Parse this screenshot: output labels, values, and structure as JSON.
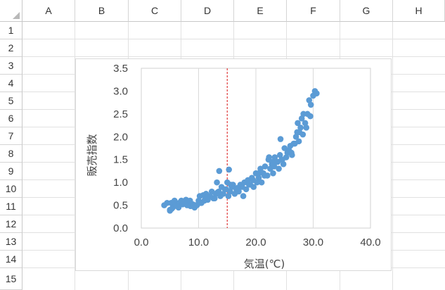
{
  "sheet": {
    "columns": [
      "A",
      "B",
      "C",
      "D",
      "E",
      "F",
      "G",
      "H"
    ],
    "rows": [
      "1",
      "2",
      "3",
      "4",
      "5",
      "6",
      "7",
      "8",
      "9",
      "10",
      "11",
      "12",
      "13",
      "14",
      "15"
    ]
  },
  "chart_data": {
    "type": "scatter",
    "title": "",
    "xlabel": "気温(℃)",
    "ylabel": "販売指数",
    "xlim": [
      0,
      40
    ],
    "ylim": [
      0,
      3.5
    ],
    "x_ticks": [
      "0.0",
      "10.0",
      "20.0",
      "30.0",
      "40.0"
    ],
    "y_ticks": [
      "0.0",
      "0.5",
      "1.0",
      "1.5",
      "2.0",
      "2.5",
      "3.0",
      "3.5"
    ],
    "grid": "vertical",
    "reference_line": {
      "x": 15,
      "style": "dashed",
      "color": "#e03c3c"
    },
    "marker_color": "#5b9bd5",
    "series": [
      {
        "x": [
          4,
          4.5,
          5,
          5.2,
          5.5,
          5.8,
          6,
          6.3,
          6.6,
          7,
          7.2,
          7.5,
          7.8,
          8,
          8.3,
          8.6,
          9,
          9.3,
          9.7,
          10,
          10.2,
          10.5,
          10.8,
          11,
          11.3,
          11.6,
          12,
          12.3,
          12.6,
          13,
          13.2,
          13.5,
          13.8,
          14,
          14.3,
          14.6,
          15,
          15.2,
          15.5,
          15.8,
          16,
          16.3,
          16.6,
          17,
          17.3,
          17.6,
          18,
          18.3,
          18.6,
          19,
          19.3,
          19.6,
          20,
          20.2,
          20.5,
          20.8,
          21,
          21.3,
          21.6,
          22,
          22.2,
          22.5,
          22.8,
          23,
          23.3,
          23.6,
          24,
          24.2,
          24.5,
          24.8,
          25,
          25.3,
          25.6,
          26,
          26.3,
          26.6,
          27,
          27.2,
          27.5,
          27.8,
          28,
          28.3,
          28.6,
          29,
          29.3,
          29.6,
          30,
          30.3,
          30.6,
          5,
          6.5,
          8.5,
          11.5,
          12.8,
          14.8,
          17.8,
          19.5,
          21.5,
          23.8,
          25.5,
          27.3,
          28.8,
          5.3,
          7.3,
          10.3,
          13.3,
          15.3,
          18.8,
          22.3,
          24.3,
          26.8,
          29.5,
          9.5,
          16.8,
          20.5,
          23.2,
          25.8,
          27.6,
          28.2,
          13.6,
          15.6,
          22.8,
          24.6,
          26.2
        ],
        "y": [
          0.5,
          0.55,
          0.4,
          0.55,
          0.45,
          0.6,
          0.5,
          0.48,
          0.55,
          0.6,
          0.52,
          0.58,
          0.62,
          0.5,
          0.55,
          0.48,
          0.52,
          0.45,
          0.5,
          0.6,
          0.7,
          0.55,
          0.72,
          0.6,
          0.75,
          0.62,
          0.7,
          0.8,
          0.65,
          0.75,
          1.0,
          0.8,
          0.7,
          0.9,
          0.75,
          0.85,
          1.0,
          0.7,
          0.8,
          0.9,
          0.95,
          0.75,
          0.85,
          0.8,
          0.95,
          0.9,
          1.0,
          0.85,
          1.05,
          0.95,
          1.1,
          0.9,
          1.2,
          1.0,
          1.1,
          1.3,
          1.0,
          1.2,
          1.35,
          1.15,
          1.5,
          1.3,
          1.4,
          1.2,
          1.55,
          1.45,
          1.3,
          1.6,
          1.5,
          1.4,
          1.75,
          1.55,
          1.7,
          1.8,
          1.6,
          1.85,
          2.0,
          2.1,
          1.9,
          2.2,
          2.4,
          2.5,
          2.3,
          2.5,
          2.8,
          2.7,
          2.9,
          3.0,
          2.95,
          0.38,
          0.45,
          0.6,
          0.68,
          0.65,
          0.85,
          0.7,
          1.05,
          1.15,
          1.45,
          1.65,
          2.3,
          2.2,
          0.42,
          0.58,
          0.55,
          0.78,
          1.28,
          0.95,
          1.55,
          1.95,
          1.85,
          2.45,
          0.5,
          0.88,
          1.2,
          1.35,
          1.7,
          2.1,
          2.05,
          1.25,
          0.95,
          1.45,
          1.5,
          1.65
        ]
      }
    ]
  }
}
